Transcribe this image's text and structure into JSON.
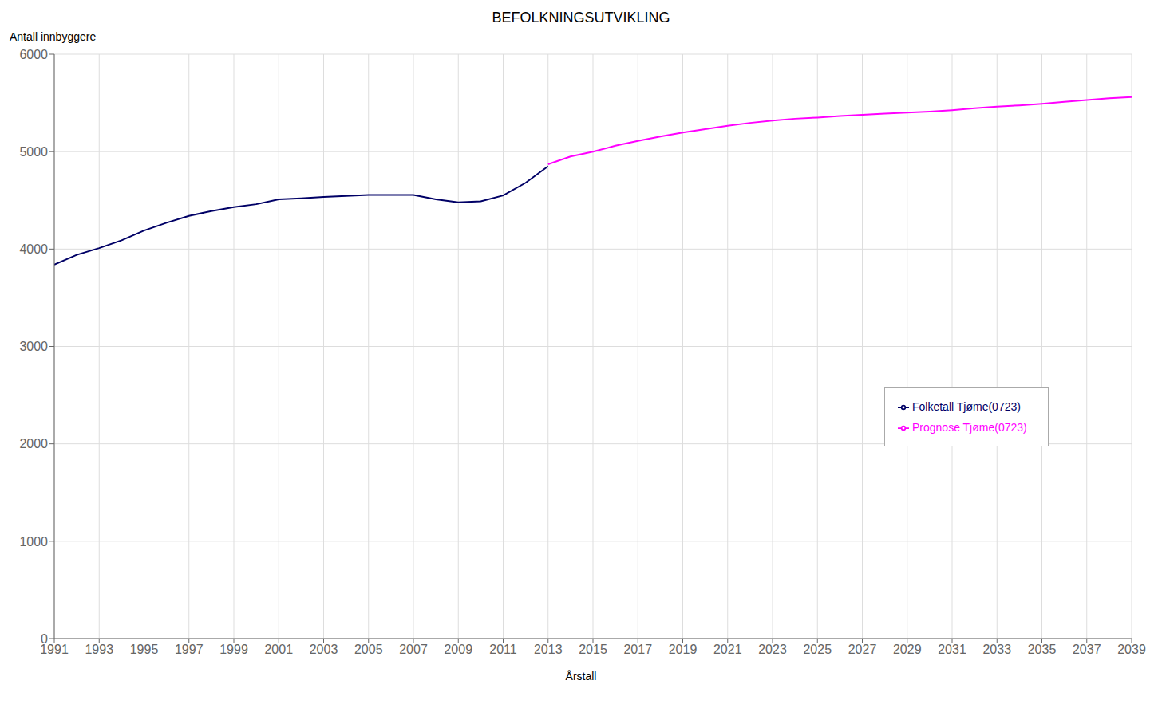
{
  "chart_data": {
    "type": "line",
    "title": "BEFOLKNINGSUTVIKLING",
    "xlabel": "Årstall",
    "ylabel": "Antall innbyggere",
    "series": [
      {
        "name": "Folketall Tjøme(0723)",
        "color": "#000066",
        "x": [
          1991,
          1992,
          1993,
          1994,
          1995,
          1996,
          1997,
          1998,
          1999,
          2000,
          2001,
          2002,
          2003,
          2004,
          2005,
          2006,
          2007,
          2008,
          2009,
          2010,
          2011,
          2012,
          2013
        ],
        "values": [
          3840,
          3940,
          4010,
          4090,
          4190,
          4270,
          4340,
          4390,
          4430,
          4460,
          4510,
          4520,
          4535,
          4545,
          4555,
          4555,
          4555,
          4510,
          4480,
          4490,
          4550,
          4680,
          4850
        ]
      },
      {
        "name": "Prognose Tjøme(0723)",
        "color": "#ff00ff",
        "x": [
          2013,
          2014,
          2015,
          2016,
          2017,
          2018,
          2019,
          2020,
          2021,
          2022,
          2023,
          2024,
          2025,
          2026,
          2027,
          2028,
          2029,
          2030,
          2031,
          2032,
          2033,
          2034,
          2035,
          2036,
          2037,
          2038,
          2039
        ],
        "values": [
          4870,
          4950,
          5000,
          5060,
          5110,
          5155,
          5195,
          5230,
          5265,
          5295,
          5318,
          5338,
          5350,
          5365,
          5378,
          5390,
          5400,
          5410,
          5425,
          5445,
          5462,
          5475,
          5490,
          5510,
          5530,
          5548,
          5560
        ]
      }
    ],
    "xlim": [
      1991,
      2039
    ],
    "xticks": [
      1991,
      1993,
      1995,
      1997,
      1999,
      2001,
      2003,
      2005,
      2007,
      2009,
      2011,
      2013,
      2015,
      2017,
      2019,
      2021,
      2023,
      2025,
      2027,
      2029,
      2031,
      2033,
      2035,
      2037,
      2039
    ],
    "ylim": [
      0,
      6000
    ],
    "yticks": [
      0,
      1000,
      2000,
      3000,
      4000,
      5000,
      6000
    ],
    "grid": true,
    "legend": "right"
  }
}
